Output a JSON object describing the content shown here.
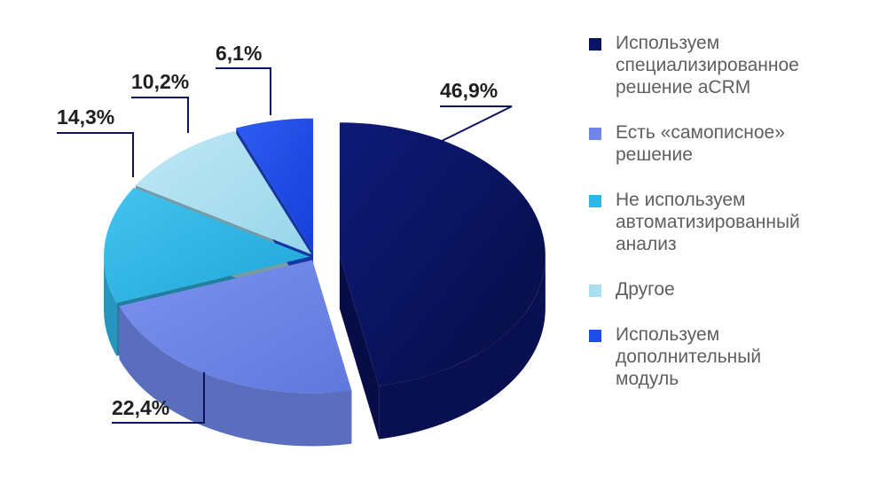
{
  "chart_data": {
    "type": "pie",
    "slices": [
      {
        "label": "Используем\nспециализированное\nрешение aCRM",
        "value": 46.9,
        "value_label": "46,9%",
        "color": "#0b1463"
      },
      {
        "label": "Есть «самописное»\nрешение",
        "value": 22.4,
        "value_label": "22,4%",
        "color": "#6f86e6"
      },
      {
        "label": "Не используем\nавтоматизированный\nанализ",
        "value": 14.3,
        "value_label": "14,3%",
        "color": "#2fb6e6"
      },
      {
        "label": "Другое",
        "value": 10.2,
        "value_label": "10,2%",
        "color": "#a9dff0"
      },
      {
        "label": "Используем\nдополнительный\nмодуль",
        "value": 6.1,
        "value_label": "6,1%",
        "color": "#1f4de8"
      }
    ],
    "legend_position": "right"
  }
}
